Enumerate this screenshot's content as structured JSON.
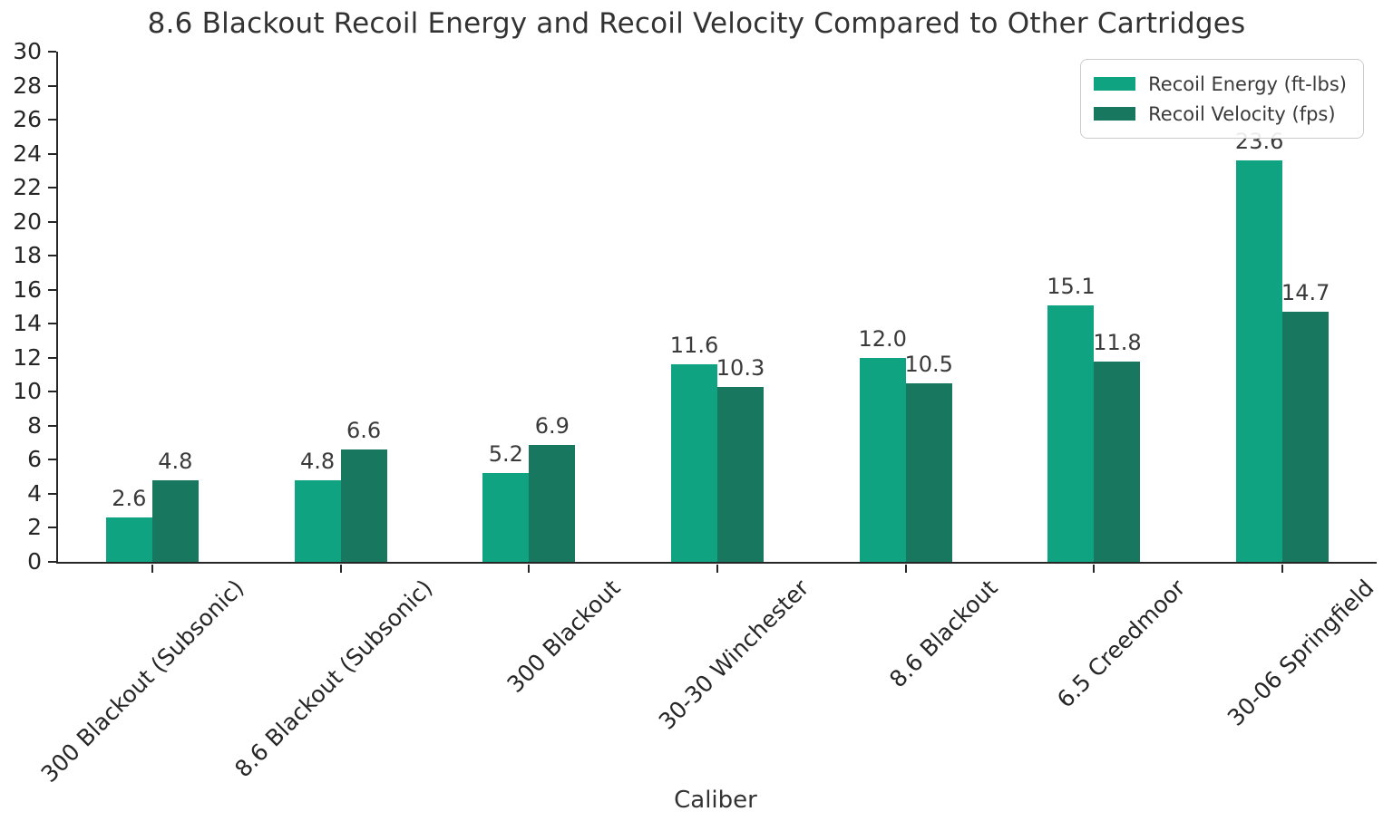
{
  "chart_data": {
    "type": "bar",
    "title": "8.6 Blackout Recoil Energy and Recoil Velocity Compared to Other Cartridges",
    "xlabel": "Caliber",
    "ylabel": "",
    "categories": [
      "300 Blackout (Subsonic)",
      "8.6 Blackout (Subsonic)",
      "300 Blackout",
      "30-30 Winchester",
      "8.6 Blackout",
      "6.5 Creedmoor",
      "30-06 Springfield"
    ],
    "series": [
      {
        "name": "Recoil Energy (ft-lbs)",
        "color": "#10a381",
        "values": [
          2.6,
          4.8,
          5.2,
          11.6,
          12.0,
          15.1,
          23.6
        ]
      },
      {
        "name": "Recoil Velocity (fps)",
        "color": "#17775f",
        "values": [
          4.8,
          6.6,
          6.9,
          10.3,
          10.5,
          11.8,
          14.7
        ]
      }
    ],
    "ylim": [
      0,
      30
    ],
    "ytick_step": 2,
    "yticks": [
      0,
      2,
      4,
      6,
      8,
      10,
      12,
      14,
      16,
      18,
      20,
      22,
      24,
      26,
      28,
      30
    ],
    "grid": false,
    "legend_position": "upper right",
    "value_labels": true,
    "value_label_format": "1-decimal",
    "x_label_rotation_deg": 45
  },
  "style": {
    "axis_color": "#262626",
    "text_color": "#3a3a3a",
    "background": "#ffffff",
    "legend_border": "#cccccc"
  }
}
